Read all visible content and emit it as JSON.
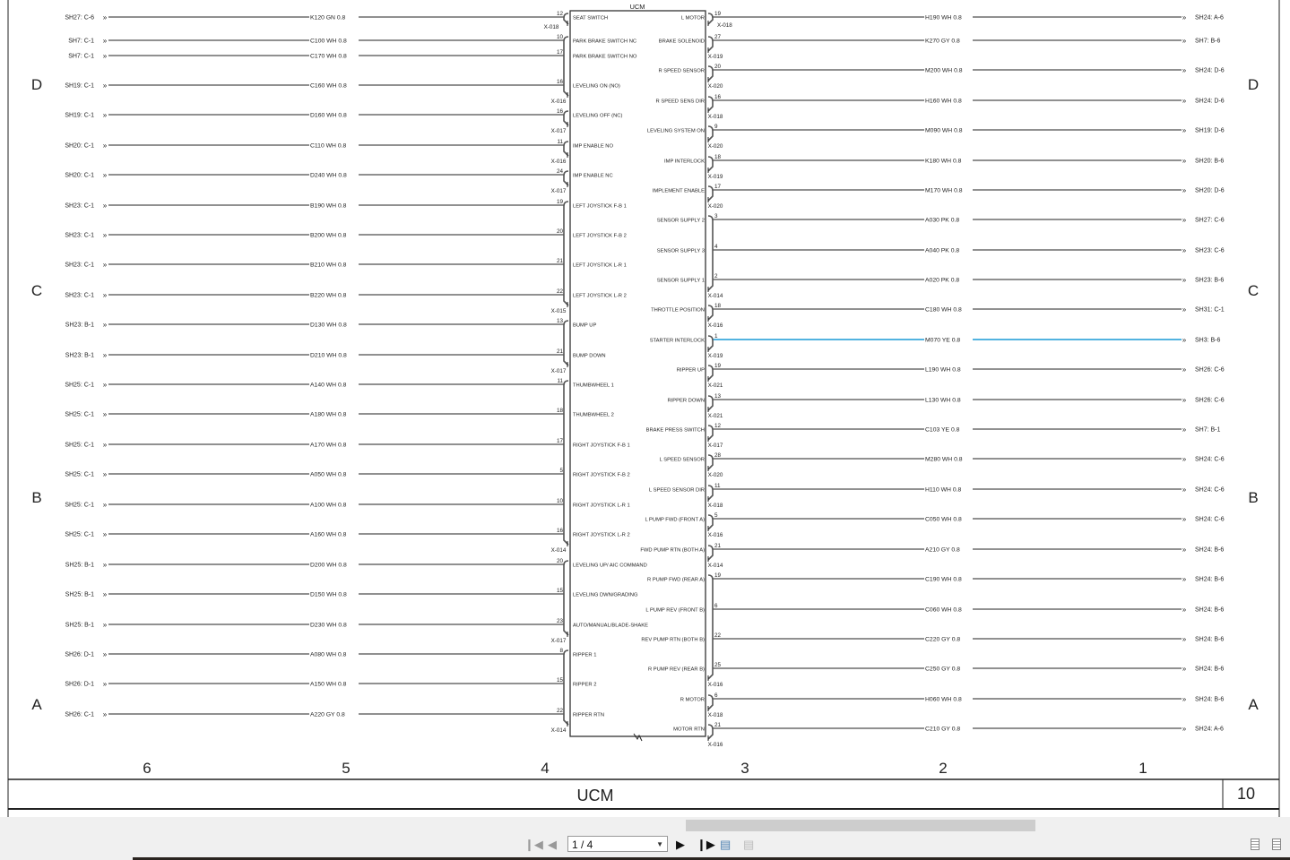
{
  "module": {
    "title": "UCM"
  },
  "zones": {
    "letters": [
      "D",
      "C",
      "B",
      "A"
    ],
    "columns": [
      "6",
      "5",
      "4",
      "3",
      "2",
      "1"
    ]
  },
  "title_block": {
    "name": "UCM",
    "sheet": "10"
  },
  "colors": {
    "wire": "#222222",
    "highlight_wire": "#1a9ad6",
    "box": "#333333"
  },
  "left_circuits": [
    {
      "ref": "SH27: C-6",
      "wire": "K120  GN  0.8",
      "pin": "12",
      "function": "SEAT SWITCH",
      "connector": "X-018"
    },
    {
      "ref": "SH7: C-1",
      "wire": "C100  WH  0.8",
      "pin": "10",
      "function": "PARK BRAKE SWITCH NC",
      "connector": ""
    },
    {
      "ref": "SH7: C-1",
      "wire": "C170  WH  0.8",
      "pin": "17",
      "function": "PARK BRAKE SWITCH NO",
      "connector": ""
    },
    {
      "ref": "SH19: C-1",
      "wire": "C160  WH  0.8",
      "pin": "16",
      "function": "LEVELING ON (NO)",
      "connector": "X-016"
    },
    {
      "ref": "SH19: C-1",
      "wire": "D160  WH  0.8",
      "pin": "16",
      "function": "LEVELING OFF (NC)",
      "connector": "X-017"
    },
    {
      "ref": "SH20: C-1",
      "wire": "C110  WH  0.8",
      "pin": "11",
      "function": "IMP ENABLE NO",
      "connector": "X-016"
    },
    {
      "ref": "SH20: C-1",
      "wire": "D240  WH  0.8",
      "pin": "24",
      "function": "IMP ENABLE NC",
      "connector": "X-017"
    },
    {
      "ref": "SH23: C-1",
      "wire": "B190  WH  0.8",
      "pin": "19",
      "function": "LEFT JOYSTICK F-B 1",
      "connector": ""
    },
    {
      "ref": "SH23: C-1",
      "wire": "B200  WH  0.8",
      "pin": "20",
      "function": "LEFT JOYSTICK F-B 2",
      "connector": ""
    },
    {
      "ref": "SH23: C-1",
      "wire": "B210  WH  0.8",
      "pin": "21",
      "function": "LEFT JOYSTICK L-R 1",
      "connector": ""
    },
    {
      "ref": "SH23: C-1",
      "wire": "B220  WH  0.8",
      "pin": "22",
      "function": "LEFT JOYSTICK L-R 2",
      "connector": "X-015"
    },
    {
      "ref": "SH23: B-1",
      "wire": "D130  WH  0.8",
      "pin": "13",
      "function": "BUMP UP",
      "connector": ""
    },
    {
      "ref": "SH23: B-1",
      "wire": "D210  WH  0.8",
      "pin": "21",
      "function": "BUMP DOWN",
      "connector": "X-017"
    },
    {
      "ref": "SH25: C-1",
      "wire": "A140  WH  0.8",
      "pin": "11",
      "function": "THUMBWHEEL 1",
      "connector": ""
    },
    {
      "ref": "SH25: C-1",
      "wire": "A180  WH  0.8",
      "pin": "18",
      "function": "THUMBWHEEL 2",
      "connector": ""
    },
    {
      "ref": "SH25: C-1",
      "wire": "A170  WH  0.8",
      "pin": "17",
      "function": "RIGHT JOYSTICK F-B 1",
      "connector": ""
    },
    {
      "ref": "SH25: C-1",
      "wire": "A050  WH  0.8",
      "pin": "5",
      "function": "RIGHT JOYSTICK F-B 2",
      "connector": ""
    },
    {
      "ref": "SH25: C-1",
      "wire": "A100  WH  0.8",
      "pin": "10",
      "function": "RIGHT JOYSTICK L-R 1",
      "connector": ""
    },
    {
      "ref": "SH25: C-1",
      "wire": "A160  WH  0.8",
      "pin": "16",
      "function": "RIGHT JOYSTICK L-R 2",
      "connector": "X-014"
    },
    {
      "ref": "SH25: B-1",
      "wire": "D200  WH  0.8",
      "pin": "20",
      "function": "LEVELING UP/ AIC COMMAND",
      "connector": ""
    },
    {
      "ref": "SH25: B-1",
      "wire": "D150  WH  0.8",
      "pin": "15",
      "function": "LEVELING DWN/GRADING",
      "connector": ""
    },
    {
      "ref": "SH25: B-1",
      "wire": "D230  WH  0.8",
      "pin": "23",
      "function": "AUTO/MANUAL/BLADE-SHAKE",
      "connector": "X-017"
    },
    {
      "ref": "SH26: D-1",
      "wire": "A080  WH  0.8",
      "pin": "8",
      "function": "RIPPER 1",
      "connector": ""
    },
    {
      "ref": "SH26: D-1",
      "wire": "A150  WH  0.8",
      "pin": "15",
      "function": "RIPPER 2",
      "connector": ""
    },
    {
      "ref": "SH26: C-1",
      "wire": "A220  GY  0.8",
      "pin": "22",
      "function": "RIPPER RTN",
      "connector": "X-014"
    }
  ],
  "right_circuits": [
    {
      "function": "L MOTOR",
      "pin": "19",
      "connector": "X-018",
      "wire": "H190  WH  0.8",
      "ref": "SH24: A-6"
    },
    {
      "function": "BRAKE SOLENOID",
      "pin": "27",
      "connector": "X-019",
      "wire": "K270  GY  0.8",
      "ref": "SH7: B-6"
    },
    {
      "function": "R SPEED SENSOR",
      "pin": "20",
      "connector": "X-020",
      "wire": "M200  WH  0.8",
      "ref": "SH24: D-6"
    },
    {
      "function": "R SPEED SENS DIR",
      "pin": "16",
      "connector": "X-018",
      "wire": "H160  WH  0.8",
      "ref": "SH24: D-6"
    },
    {
      "function": "LEVELING SYSTEM ON",
      "pin": "9",
      "connector": "X-020",
      "wire": "M090  WH  0.8",
      "ref": "SH19: D-6"
    },
    {
      "function": "IMP INTERLOCK",
      "pin": "18",
      "connector": "X-019",
      "wire": "K180  WH  0.8",
      "ref": "SH20: B-6"
    },
    {
      "function": "IMPLEMENT ENABLE",
      "pin": "17",
      "connector": "X-020",
      "wire": "M170  WH  0.8",
      "ref": "SH20: D-6"
    },
    {
      "function": "SENSOR SUPPLY 2",
      "pin": "3",
      "connector": "",
      "wire": "A030  PK  0.8",
      "ref": "SH27: C-6"
    },
    {
      "function": "SENSOR SUPPLY 3",
      "pin": "4",
      "connector": "",
      "wire": "A040  PK  0.8",
      "ref": "SH23: C-6"
    },
    {
      "function": "SENSOR SUPPLY 1",
      "pin": "2",
      "connector": "X-014",
      "wire": "A020  PK  0.8",
      "ref": "SH23: B-6"
    },
    {
      "function": "THROTTLE POSITION",
      "pin": "18",
      "connector": "X-016",
      "wire": "C180  WH  0.8",
      "ref": "SH31: C-1"
    },
    {
      "function": "STARTER INTERLOCK",
      "pin": "1",
      "connector": "X-019",
      "wire": "M070  YE  0.8",
      "ref": "SH3: B-6",
      "highlight": true
    },
    {
      "function": "RIPPER UP",
      "pin": "19",
      "connector": "X-021",
      "wire": "L190  WH  0.8",
      "ref": "SH26: C-6"
    },
    {
      "function": "RIPPER DOWN",
      "pin": "13",
      "connector": "X-021",
      "wire": "L130  WH  0.8",
      "ref": "SH26: C-6"
    },
    {
      "function": "BRAKE PRESS SWITCH",
      "pin": "12",
      "connector": "X-017",
      "wire": "C103  YE  0.8",
      "ref": "SH7: B-1"
    },
    {
      "function": "L SPEED SENSOR",
      "pin": "28",
      "connector": "X-020",
      "wire": "M280  WH  0.8",
      "ref": "SH24: C-6"
    },
    {
      "function": "L SPEED SENSOR DIR",
      "pin": "11",
      "connector": "X-018",
      "wire": "H110  WH  0.8",
      "ref": "SH24: C-6"
    },
    {
      "function": "L PUMP FWD (FRONT A)",
      "pin": "5",
      "connector": "X-016",
      "wire": "C050  WH  0.8",
      "ref": "SH24: C-6"
    },
    {
      "function": "FWD PUMP RTN (BOTH A)",
      "pin": "21",
      "connector": "X-014",
      "wire": "A210  GY  0.8",
      "ref": "SH24: B-6"
    },
    {
      "function": "R PUMP FWD (REAR A)",
      "pin": "19",
      "connector": "",
      "wire": "C190  WH  0.8",
      "ref": "SH24: B-6"
    },
    {
      "function": "L PUMP REV (FRONT B)",
      "pin": "6",
      "connector": "",
      "wire": "C060  WH  0.8",
      "ref": "SH24: B-6"
    },
    {
      "function": "REV PUMP RTN (BOTH B)",
      "pin": "22",
      "connector": "",
      "wire": "C220  GY  0.8",
      "ref": "SH24: B-6"
    },
    {
      "function": "R PUMP REV (REAR B)",
      "pin": "25",
      "connector": "X-016",
      "wire": "C250  GY  0.8",
      "ref": "SH24: B-6"
    },
    {
      "function": "R MOTOR",
      "pin": "6",
      "connector": "X-018",
      "wire": "H060  WH  0.8",
      "ref": "SH24: B-6"
    },
    {
      "function": "MOTOR RTN",
      "pin": "21",
      "connector": "X-016",
      "wire": "C210  GY  0.8",
      "ref": "SH24: A-6"
    }
  ],
  "viewer": {
    "page_indicator": "1 / 4",
    "buttons": {
      "first": "first-page-icon",
      "prev": "prev-page-icon",
      "next": "next-page-icon",
      "last": "last-page-icon"
    }
  }
}
